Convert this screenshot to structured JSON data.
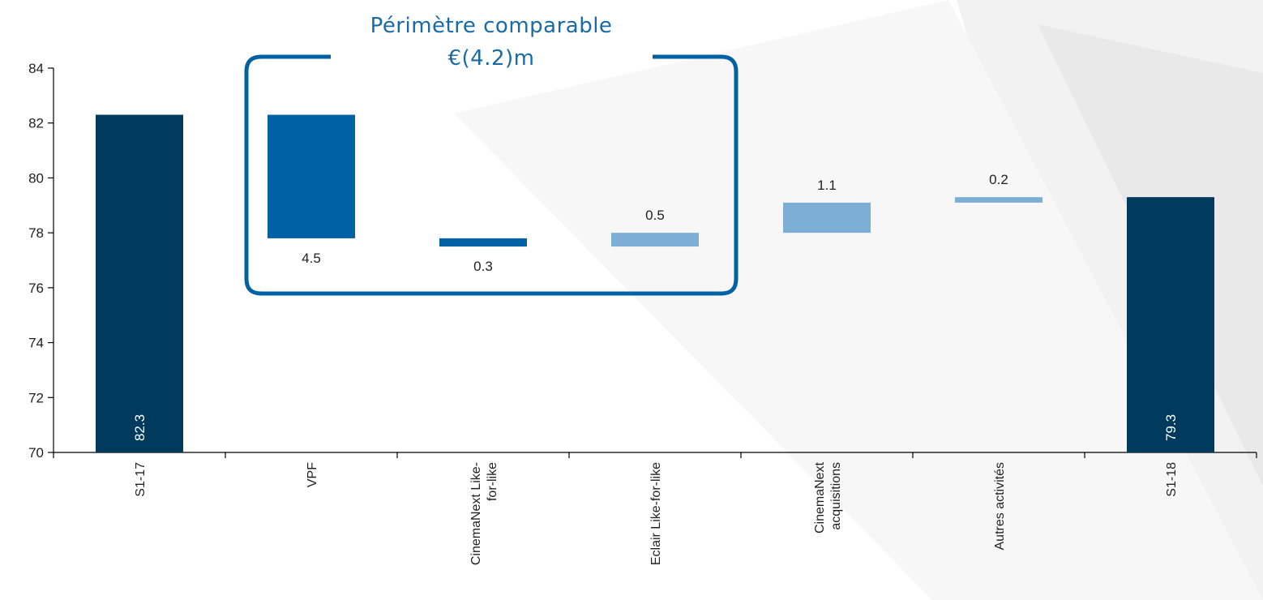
{
  "chart_data": {
    "type": "waterfall",
    "ylim": [
      70,
      84
    ],
    "y_ticks": [
      70,
      72,
      74,
      76,
      78,
      80,
      82,
      84
    ],
    "grid": false,
    "categories": [
      {
        "label_lines": [
          "S1-17"
        ],
        "kind": "total",
        "start": 70,
        "end": 82.3,
        "value_label": "82.3",
        "color": "#003a5d"
      },
      {
        "label_lines": [
          "VPF"
        ],
        "kind": "decrease",
        "start": 82.3,
        "end": 77.8,
        "value_label": "4.5",
        "color": "#0062a4"
      },
      {
        "label_lines": [
          "CinemaNext Like-",
          "for-like"
        ],
        "kind": "decrease",
        "start": 77.8,
        "end": 77.5,
        "value_label": "0.3",
        "color": "#0062a4"
      },
      {
        "label_lines": [
          "Eclair Like-for-like"
        ],
        "kind": "increase",
        "start": 77.5,
        "end": 78.0,
        "value_label": "0.5",
        "color": "#7daed3"
      },
      {
        "label_lines": [
          "CinemaNext",
          "acquisitions"
        ],
        "kind": "increase",
        "start": 78.0,
        "end": 79.1,
        "value_label": "1.1",
        "color": "#7daed3"
      },
      {
        "label_lines": [
          "Autres activités"
        ],
        "kind": "increase",
        "start": 79.1,
        "end": 79.3,
        "value_label": "0.2",
        "color": "#7daed3"
      },
      {
        "label_lines": [
          "S1-18"
        ],
        "kind": "total",
        "start": 70,
        "end": 79.3,
        "value_label": "79.3",
        "color": "#003a5d"
      }
    ],
    "annotation": {
      "title": "Périmètre comparable",
      "value": "€(4.2)m",
      "color": "#1a6aa6"
    }
  }
}
